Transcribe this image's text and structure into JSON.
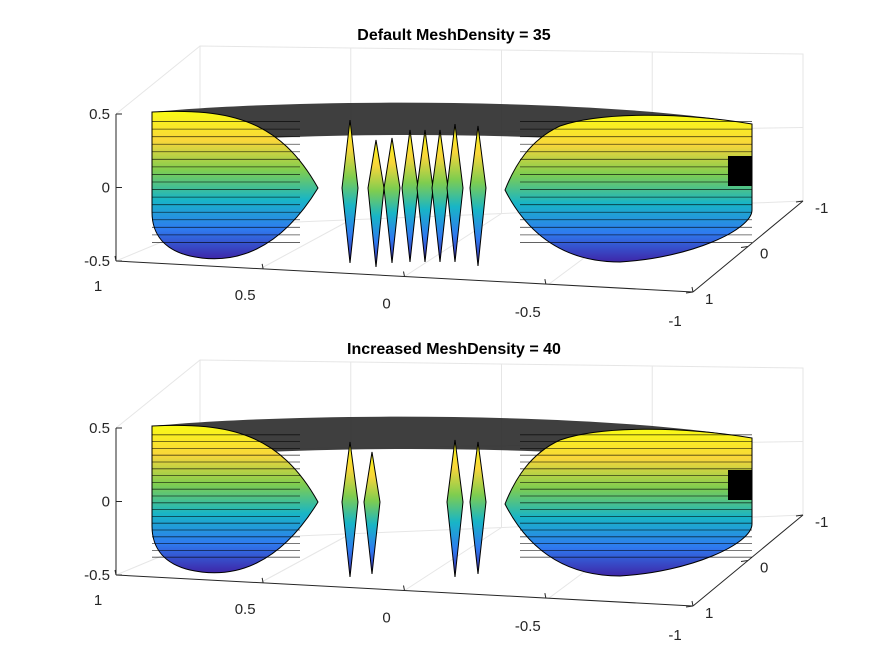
{
  "chart_data": [
    {
      "type": "surface",
      "title": "Default MeshDensity = 35",
      "xticks": [
        "1",
        "0.5",
        "0",
        "-0.5",
        "-1"
      ],
      "yticks": [
        "-1",
        "0",
        "1"
      ],
      "zticks": [
        "0.5",
        "0",
        "-0.5"
      ],
      "xlim": [
        -1,
        1
      ],
      "ylim": [
        -1,
        1
      ],
      "zlim": [
        -0.5,
        0.5
      ],
      "mesh_density": 35,
      "grid": true,
      "colormap": [
        "#3e26a8",
        "#2e7bf0",
        "#18b5c6",
        "#7fcd4f",
        "#f9d63a",
        "#f9fb15"
      ]
    },
    {
      "type": "surface",
      "title": "Increased MeshDensity = 40",
      "xticks": [
        "1",
        "0.5",
        "0",
        "-0.5",
        "-1"
      ],
      "yticks": [
        "-1",
        "0",
        "1"
      ],
      "zticks": [
        "0.5",
        "0",
        "-0.5"
      ],
      "xlim": [
        -1,
        1
      ],
      "ylim": [
        -1,
        1
      ],
      "zlim": [
        -0.5,
        0.5
      ],
      "mesh_density": 40,
      "grid": true,
      "colormap": [
        "#3e26a8",
        "#2e7bf0",
        "#18b5c6",
        "#7fcd4f",
        "#f9d63a",
        "#f9fb15"
      ]
    }
  ]
}
